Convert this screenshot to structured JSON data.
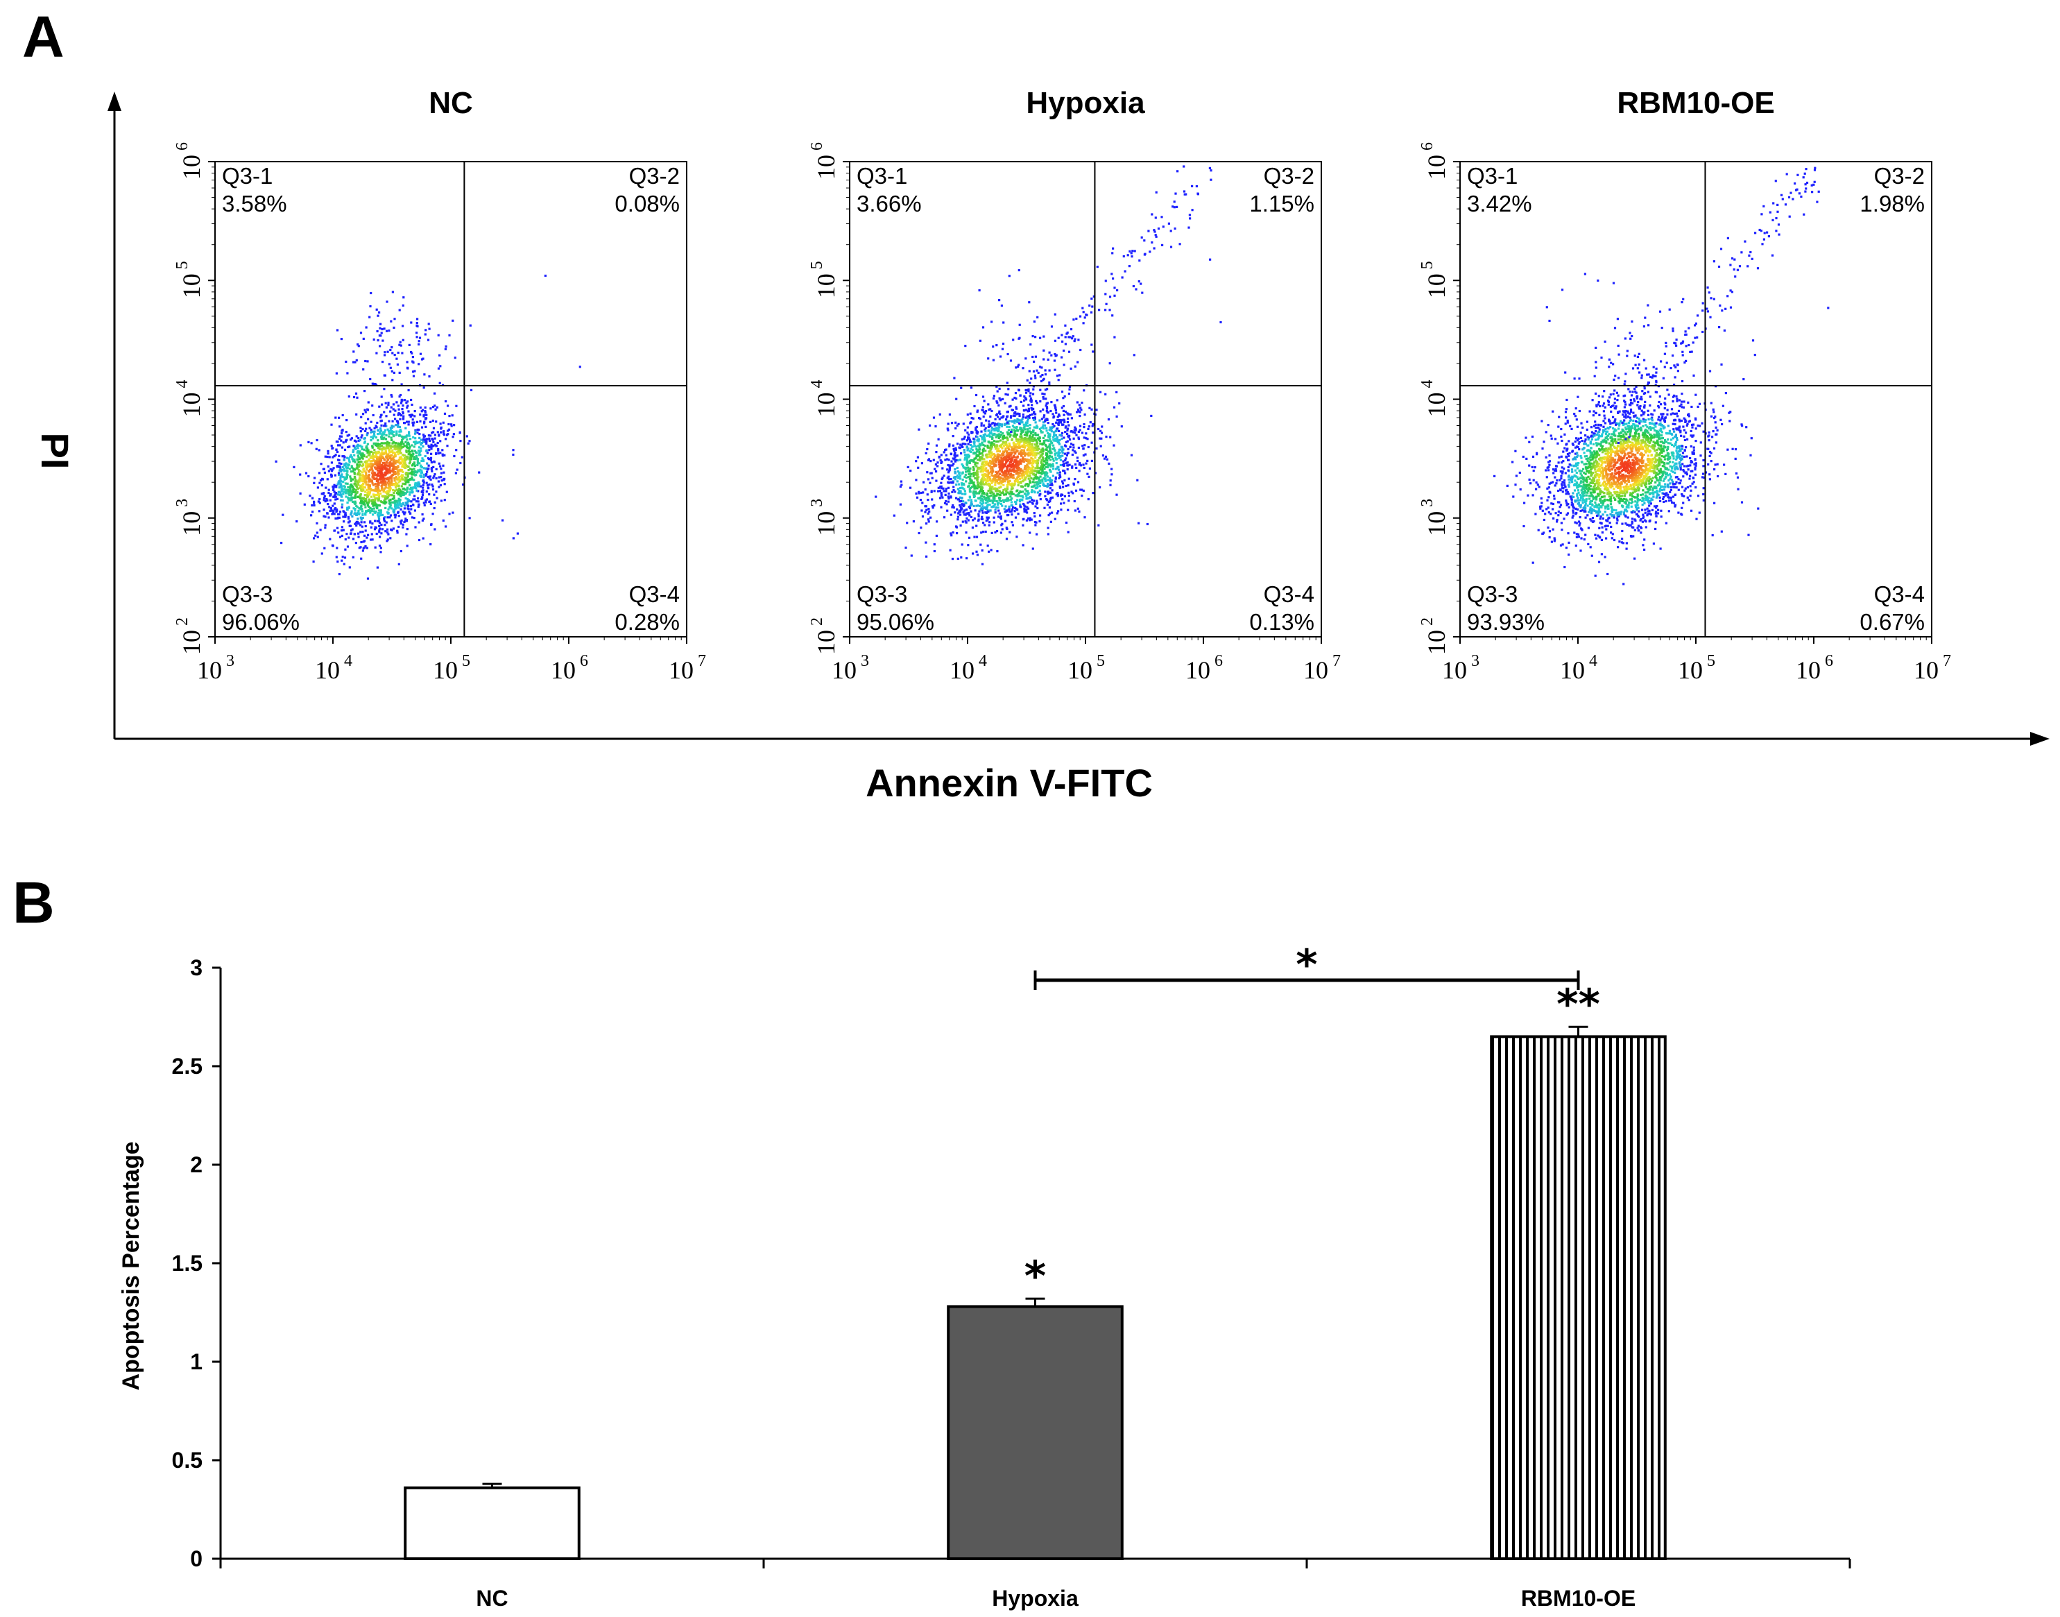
{
  "panel_a": {
    "letter": "A",
    "x_axis_title": "Annexin V-FITC",
    "y_axis_title": "PI",
    "x_ticks": [
      {
        "base": "10",
        "exp": "3"
      },
      {
        "base": "10",
        "exp": "4"
      },
      {
        "base": "10",
        "exp": "5"
      },
      {
        "base": "10",
        "exp": "6"
      },
      {
        "base": "10",
        "exp": "7"
      }
    ],
    "y_ticks": [
      {
        "base": "10",
        "exp": "2"
      },
      {
        "base": "10",
        "exp": "3"
      },
      {
        "base": "10",
        "exp": "4"
      },
      {
        "base": "10",
        "exp": "5"
      },
      {
        "base": "10",
        "exp": "6"
      }
    ],
    "colors": {
      "scatter_low": "#1e22ff",
      "scatter_mid": "#21d0d8",
      "scatter_high": "#f23a1e"
    }
  },
  "panel_b": {
    "letter": "B",
    "significance_bracket_label": "*"
  },
  "chart_data": [
    {
      "type": "scatter",
      "title": "NC",
      "xlabel": "Annexin V-FITC",
      "ylabel": "PI",
      "scale": "log",
      "xlim": [
        1000,
        10000000
      ],
      "ylim": [
        100,
        1000000
      ],
      "gate_x": 130000,
      "gate_y": 13000,
      "quadrants": [
        {
          "name": "Q3-1",
          "value": "3.58%"
        },
        {
          "name": "Q3-2",
          "value": "0.08%"
        },
        {
          "name": "Q3-3",
          "value": "96.06%"
        },
        {
          "name": "Q3-4",
          "value": "0.28%"
        }
      ]
    },
    {
      "type": "scatter",
      "title": "Hypoxia",
      "xlabel": "Annexin V-FITC",
      "ylabel": "PI",
      "scale": "log",
      "xlim": [
        1000,
        10000000
      ],
      "ylim": [
        100,
        1000000
      ],
      "gate_x": 120000,
      "gate_y": 13000,
      "quadrants": [
        {
          "name": "Q3-1",
          "value": "3.66%"
        },
        {
          "name": "Q3-2",
          "value": "1.15%"
        },
        {
          "name": "Q3-3",
          "value": "95.06%"
        },
        {
          "name": "Q3-4",
          "value": "0.13%"
        }
      ]
    },
    {
      "type": "scatter",
      "title": "RBM10-OE",
      "xlabel": "Annexin V-FITC",
      "ylabel": "PI",
      "scale": "log",
      "xlim": [
        1000,
        10000000
      ],
      "ylim": [
        100,
        1000000
      ],
      "gate_x": 120000,
      "gate_y": 13000,
      "quadrants": [
        {
          "name": "Q3-1",
          "value": "3.42%"
        },
        {
          "name": "Q3-2",
          "value": "1.98%"
        },
        {
          "name": "Q3-3",
          "value": "93.93%"
        },
        {
          "name": "Q3-4",
          "value": "0.67%"
        }
      ]
    },
    {
      "type": "bar",
      "categories": [
        "NC",
        "Hypoxia",
        "RBM10-OE"
      ],
      "values": [
        0.36,
        1.28,
        2.65
      ],
      "errors": [
        0.02,
        0.04,
        0.05
      ],
      "significance": [
        "",
        "*",
        "**"
      ],
      "fills": [
        "#ffffff",
        "#595959",
        "stripes"
      ],
      "ylabel": "Apoptosis Percentage",
      "xlabel": "",
      "ylim": [
        0,
        3
      ],
      "yticks": [
        "0",
        "0.5",
        "1",
        "1.5",
        "2",
        "2.5",
        "3"
      ],
      "comparison": {
        "from": "Hypoxia",
        "to": "RBM10-OE",
        "label": "*"
      }
    }
  ]
}
